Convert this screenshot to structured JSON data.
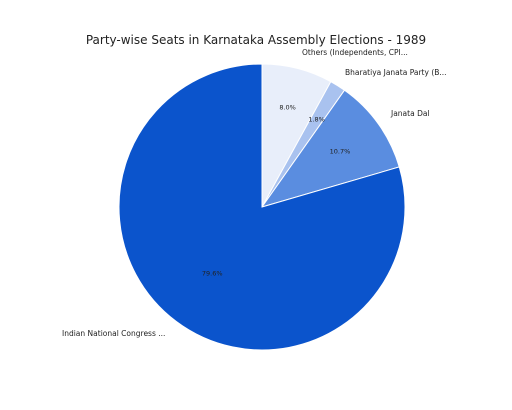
{
  "chart_data": {
    "type": "pie",
    "title": "Party-wise Seats in Karnataka Assembly Elections - 1989",
    "start_angle_deg": 0,
    "direction": "clockwise",
    "slices": [
      {
        "label": "Others (Independents, CPI...",
        "value": 8.0,
        "value_label": "8.0%",
        "color": "#e8eefa"
      },
      {
        "label": "Bharatiya Janata Party (B...",
        "value": 1.8,
        "value_label": "1.8%",
        "color": "#a9c2ef"
      },
      {
        "label": "Janata Dal",
        "value": 10.7,
        "value_label": "10.7%",
        "color": "#5a8de0"
      },
      {
        "label": "Indian National Congress ...",
        "value": 79.6,
        "value_label": "79.6%",
        "color": "#0b54cc"
      }
    ]
  }
}
